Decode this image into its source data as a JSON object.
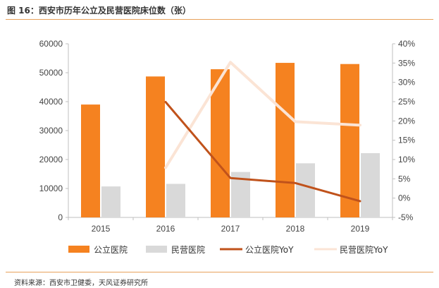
{
  "title": "图 16：西安市历年公立及民营医院床位数（张）",
  "source": "资料来源：西安市卫健委，天风证券研究所",
  "colors": {
    "public_bar": "#f58220",
    "private_bar": "#d9d9d9",
    "public_yoy": "#c0521b",
    "private_yoy": "#fbe4d5"
  },
  "chart_data": {
    "type": "bar",
    "categories": [
      "2015",
      "2016",
      "2017",
      "2018",
      "2019"
    ],
    "series": [
      {
        "name": "公立医院",
        "kind": "bar",
        "axis": "left",
        "values": [
          39000,
          48700,
          51200,
          53400,
          53000
        ]
      },
      {
        "name": "民营医院",
        "kind": "bar",
        "axis": "left",
        "values": [
          10700,
          11600,
          15700,
          18700,
          22200
        ]
      },
      {
        "name": "公立医院YoY",
        "kind": "line",
        "axis": "right",
        "values": [
          null,
          24.9,
          5.2,
          3.9,
          -0.8
        ]
      },
      {
        "name": "民营医院YoY",
        "kind": "line",
        "axis": "right",
        "values": [
          null,
          7.9,
          35.2,
          19.8,
          18.9
        ]
      }
    ],
    "y_left": {
      "min": 0,
      "max": 60000,
      "ticks": [
        "0",
        "10000",
        "20000",
        "30000",
        "40000",
        "50000",
        "60000"
      ]
    },
    "y_right": {
      "min": -5,
      "max": 40,
      "ticks": [
        "-5%",
        "0%",
        "5%",
        "10%",
        "15%",
        "20%",
        "25%",
        "30%",
        "35%",
        "40%"
      ]
    },
    "grid": false,
    "legend_position": "bottom"
  }
}
